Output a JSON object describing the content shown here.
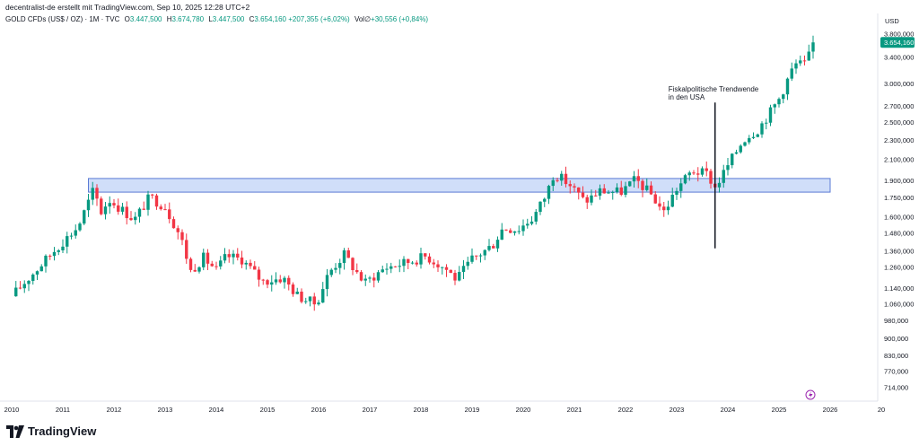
{
  "header": {
    "credit": "decentralist-de erstellt mit TradingView.com, Sep 10, 2025 12:28 UTC+2",
    "symbol": "GOLD CFDs (US$ / OZ) · 1M · TVC",
    "open_label": "O",
    "open": "3.447,500",
    "high_label": "H",
    "high": "3.674,780",
    "low_label": "L",
    "low": "3.447,500",
    "close_label": "C",
    "close": "3.654,160",
    "change": "+207,355 (+6,02%)",
    "vol_label": "Vol∅",
    "vol": "+30,556 (+0,84%)"
  },
  "brand": {
    "name": "TradingView"
  },
  "colors": {
    "up": "#089981",
    "down": "#f23645",
    "zone_fill": "#c8d8f8",
    "zone_border": "#5b7bd5",
    "price_tag": "#089981"
  },
  "chart_data": {
    "type": "candlestick",
    "scale": "log",
    "currency_label": "USD",
    "price_tag": "3.654,160",
    "y_ticks": [
      {
        "v": 714,
        "label": "714,000"
      },
      {
        "v": 770,
        "label": "770,000"
      },
      {
        "v": 830,
        "label": "830,000"
      },
      {
        "v": 900,
        "label": "900,000"
      },
      {
        "v": 980,
        "label": "980,000"
      },
      {
        "v": 1060,
        "label": "1.060,000"
      },
      {
        "v": 1140,
        "label": "1.140,000"
      },
      {
        "v": 1260,
        "label": "1.260,000"
      },
      {
        "v": 1360,
        "label": "1.360,000"
      },
      {
        "v": 1480,
        "label": "1.480,000"
      },
      {
        "v": 1600,
        "label": "1.600,000"
      },
      {
        "v": 1750,
        "label": "1.750,000"
      },
      {
        "v": 1900,
        "label": "1.900,000"
      },
      {
        "v": 2100,
        "label": "2.100,000"
      },
      {
        "v": 2300,
        "label": "2.300,000"
      },
      {
        "v": 2500,
        "label": "2.500,000"
      },
      {
        "v": 2700,
        "label": "2.700,000"
      },
      {
        "v": 3000,
        "label": "3.000,000"
      },
      {
        "v": 3400,
        "label": "3.400,000"
      },
      {
        "v": 3800,
        "label": "3.800,000"
      }
    ],
    "x_ticks": [
      "2010",
      "2011",
      "2012",
      "2013",
      "2014",
      "2015",
      "2016",
      "2017",
      "2018",
      "2019",
      "2020",
      "2021",
      "2022",
      "2023",
      "2024",
      "2025",
      "2026",
      "20"
    ],
    "x_start_year": 2010,
    "zone": {
      "low": 1800,
      "high": 1920,
      "from_year": 2011.5,
      "to_year": 2026.0
    },
    "annotation": {
      "text_line1": "Fiskalpolitische Trendwende",
      "text_line2": "in den USA",
      "year": 2023.75,
      "price_top": 2750,
      "price_bottom": 1380
    },
    "anchors": [
      [
        2010.0,
        1100
      ],
      [
        2010.4,
        1220
      ],
      [
        2010.9,
        1390
      ],
      [
        2011.3,
        1530
      ],
      [
        2011.6,
        1820
      ],
      [
        2011.75,
        1640
      ],
      [
        2011.9,
        1740
      ],
      [
        2012.4,
        1580
      ],
      [
        2012.7,
        1760
      ],
      [
        2013.0,
        1680
      ],
      [
        2013.3,
        1460
      ],
      [
        2013.5,
        1240
      ],
      [
        2013.75,
        1320
      ],
      [
        2014.0,
        1245
      ],
      [
        2014.2,
        1330
      ],
      [
        2014.5,
        1310
      ],
      [
        2014.9,
        1180
      ],
      [
        2015.3,
        1200
      ],
      [
        2015.6,
        1100
      ],
      [
        2015.95,
        1060
      ],
      [
        2016.2,
        1230
      ],
      [
        2016.5,
        1340
      ],
      [
        2016.9,
        1170
      ],
      [
        2017.3,
        1260
      ],
      [
        2017.7,
        1290
      ],
      [
        2018.1,
        1330
      ],
      [
        2018.5,
        1250
      ],
      [
        2018.7,
        1190
      ],
      [
        2019.0,
        1310
      ],
      [
        2019.4,
        1400
      ],
      [
        2019.6,
        1520
      ],
      [
        2019.9,
        1510
      ],
      [
        2020.2,
        1600
      ],
      [
        2020.45,
        1780
      ],
      [
        2020.6,
        1970
      ],
      [
        2020.9,
        1870
      ],
      [
        2021.2,
        1720
      ],
      [
        2021.5,
        1810
      ],
      [
        2021.9,
        1800
      ],
      [
        2022.2,
        1910
      ],
      [
        2022.5,
        1780
      ],
      [
        2022.75,
        1640
      ],
      [
        2023.0,
        1830
      ],
      [
        2023.3,
        1990
      ],
      [
        2023.6,
        1960
      ],
      [
        2023.75,
        1840
      ],
      [
        2024.0,
        2040
      ],
      [
        2024.3,
        2310
      ],
      [
        2024.6,
        2430
      ],
      [
        2024.85,
        2650
      ],
      [
        2025.0,
        2800
      ],
      [
        2025.3,
        3290
      ],
      [
        2025.5,
        3300
      ],
      [
        2025.6,
        3450
      ],
      [
        2025.67,
        3654
      ]
    ]
  }
}
